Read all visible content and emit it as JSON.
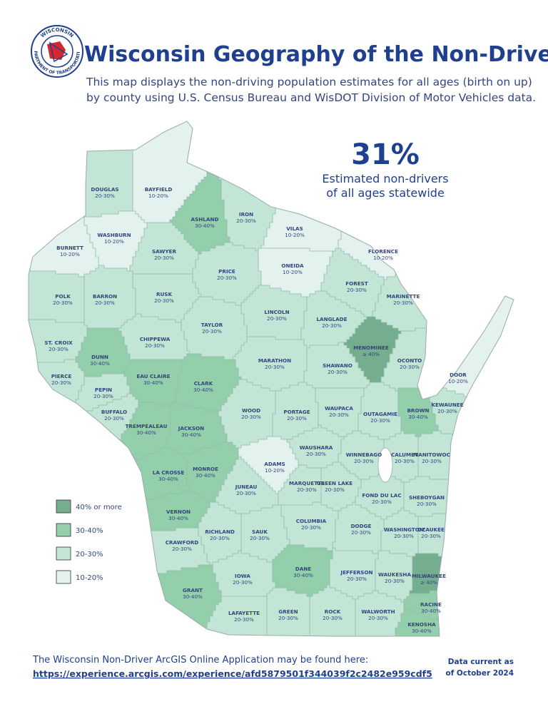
{
  "header": {
    "title": "Wisconsin Geography of the Non-Driver",
    "subtitle": [
      "This map displays the non-driving population estimates for all ages (birth on up)",
      "by county using U.S. Census Bureau and WisDOT Division of Motor Vehicles data."
    ],
    "logo": {
      "top": "WISCONSIN",
      "bottom": "DEPARTMENT OF TRANSPORTATION"
    }
  },
  "statewide": {
    "value": "31%",
    "caption": [
      "Estimated non-drivers",
      "of all ages statewide"
    ]
  },
  "legend": [
    {
      "label": "40% or more",
      "color": "#74ae8e"
    },
    {
      "label": "30-40%",
      "color": "#93cfab"
    },
    {
      "label": "20-30%",
      "color": "#c2e5d6"
    },
    {
      "label": "10-20%",
      "color": "#e3f2ef"
    }
  ],
  "counties": [
    {
      "name": "DOUGLAS",
      "range": "20-30%",
      "color": "#c2e5d6"
    },
    {
      "name": "BAYFIELD",
      "range": "10-20%",
      "color": "#e3f2ef"
    },
    {
      "name": "ASHLAND",
      "range": "30-40%",
      "color": "#93cfab"
    },
    {
      "name": "IRON",
      "range": "20-30%",
      "color": "#c2e5d6"
    },
    {
      "name": "VILAS",
      "range": "10-20%",
      "color": "#e3f2ef"
    },
    {
      "name": "BURNETT",
      "range": "10-20%",
      "color": "#e3f2ef"
    },
    {
      "name": "WASHBURN",
      "range": "10-20%",
      "color": "#e3f2ef"
    },
    {
      "name": "SAWYER",
      "range": "20-30%",
      "color": "#c2e5d6"
    },
    {
      "name": "PRICE",
      "range": "20-30%",
      "color": "#c2e5d6"
    },
    {
      "name": "ONEIDA",
      "range": "10-20%",
      "color": "#e3f2ef"
    },
    {
      "name": "FLORENCE",
      "range": "10-20%",
      "color": "#e3f2ef"
    },
    {
      "name": "FOREST",
      "range": "20-30%",
      "color": "#c2e5d6"
    },
    {
      "name": "MARINETTE",
      "range": "20-30%",
      "color": "#c2e5d6"
    },
    {
      "name": "POLK",
      "range": "20-30%",
      "color": "#c2e5d6"
    },
    {
      "name": "BARRON",
      "range": "20-30%",
      "color": "#c2e5d6"
    },
    {
      "name": "RUSK",
      "range": "20-30%",
      "color": "#c2e5d6"
    },
    {
      "name": "LINCOLN",
      "range": "20-30%",
      "color": "#c2e5d6"
    },
    {
      "name": "LANGLADE",
      "range": "20-30%",
      "color": "#c2e5d6"
    },
    {
      "name": "TAYLOR",
      "range": "20-30%",
      "color": "#c2e5d6"
    },
    {
      "name": "CHIPPEWA",
      "range": "20-30%",
      "color": "#c2e5d6"
    },
    {
      "name": "ST. CROIX",
      "range": "20-30%",
      "color": "#c2e5d6"
    },
    {
      "name": "DUNN",
      "range": "30-40%",
      "color": "#93cfab"
    },
    {
      "name": "MENOMINEE",
      "range": "≥ 40%",
      "color": "#74ae8e"
    },
    {
      "name": "MARATHON",
      "range": "20-30%",
      "color": "#c2e5d6"
    },
    {
      "name": "SHAWANO",
      "range": "20-30%",
      "color": "#c2e5d6"
    },
    {
      "name": "OCONTO",
      "range": "20-30%",
      "color": "#c2e5d6"
    },
    {
      "name": "PIERCE",
      "range": "20-30%",
      "color": "#c2e5d6"
    },
    {
      "name": "EAU CLAIRE",
      "range": "30-40%",
      "color": "#93cfab"
    },
    {
      "name": "CLARK",
      "range": "30-40%",
      "color": "#93cfab"
    },
    {
      "name": "DOOR",
      "range": "10-20%",
      "color": "#e3f2ef"
    },
    {
      "name": "PEPIN",
      "range": "20-30%",
      "color": "#c2e5d6"
    },
    {
      "name": "BUFFALO",
      "range": "20-30%",
      "color": "#c2e5d6"
    },
    {
      "name": "WOOD",
      "range": "20-30%",
      "color": "#c2e5d6"
    },
    {
      "name": "PORTAGE",
      "range": "20-30%",
      "color": "#c2e5d6"
    },
    {
      "name": "WAUPACA",
      "range": "20-30%",
      "color": "#c2e5d6"
    },
    {
      "name": "OUTAGAMIE",
      "range": "20-30%",
      "color": "#c2e5d6"
    },
    {
      "name": "BROWN",
      "range": "30-40%",
      "color": "#93cfab"
    },
    {
      "name": "KEWAUNEE",
      "range": "20-30%",
      "color": "#c2e5d6"
    },
    {
      "name": "TREMPEALEAU",
      "range": "30-40%",
      "color": "#93cfab"
    },
    {
      "name": "JACKSON",
      "range": "30-40%",
      "color": "#93cfab"
    },
    {
      "name": "MANITOWOC",
      "range": "20-30%",
      "color": "#c2e5d6"
    },
    {
      "name": "CALUMET",
      "range": "20-30%",
      "color": "#c2e5d6"
    },
    {
      "name": "WINNEBAGO",
      "range": "20-30%",
      "color": "#c2e5d6"
    },
    {
      "name": "WAUSHARA",
      "range": "20-30%",
      "color": "#c2e5d6"
    },
    {
      "name": "ADAMS",
      "range": "10-20%",
      "color": "#e3f2ef"
    },
    {
      "name": "MONROE",
      "range": "30-40%",
      "color": "#93cfab"
    },
    {
      "name": "LA CROSSE",
      "range": "30-40%",
      "color": "#93cfab"
    },
    {
      "name": "JUNEAU",
      "range": "20-30%",
      "color": "#c2e5d6"
    },
    {
      "name": "MARQUETTE",
      "range": "20-30%",
      "color": "#c2e5d6"
    },
    {
      "name": "GREEN LAKE",
      "range": "20-30%",
      "color": "#c2e5d6"
    },
    {
      "name": "FOND DU LAC",
      "range": "20-30%",
      "color": "#c2e5d6"
    },
    {
      "name": "SHEBOYGAN",
      "range": "20-30%",
      "color": "#c2e5d6"
    },
    {
      "name": "VERNON",
      "range": "30-40%",
      "color": "#93cfab"
    },
    {
      "name": "COLUMBIA",
      "range": "20-30%",
      "color": "#c2e5d6"
    },
    {
      "name": "DODGE",
      "range": "20-30%",
      "color": "#c2e5d6"
    },
    {
      "name": "WASHINGTON",
      "range": "20-30%",
      "color": "#c2e5d6"
    },
    {
      "name": "OZAUKEE",
      "range": "20-30%",
      "color": "#c2e5d6"
    },
    {
      "name": "RICHLAND",
      "range": "20-30%",
      "color": "#c2e5d6"
    },
    {
      "name": "SAUK",
      "range": "20-30%",
      "color": "#c2e5d6"
    },
    {
      "name": "CRAWFORD",
      "range": "20-30%",
      "color": "#c2e5d6"
    },
    {
      "name": "JEFFERSON",
      "range": "20-30%",
      "color": "#c2e5d6"
    },
    {
      "name": "WAUKESHA",
      "range": "20-30%",
      "color": "#c2e5d6"
    },
    {
      "name": "MILWAUKEE",
      "range": "≥ 40%",
      "color": "#74ae8e"
    },
    {
      "name": "IOWA",
      "range": "20-30%",
      "color": "#c2e5d6"
    },
    {
      "name": "DANE",
      "range": "30-40%",
      "color": "#93cfab"
    },
    {
      "name": "GRANT",
      "range": "30-40%",
      "color": "#93cfab"
    },
    {
      "name": "RACINE",
      "range": "30-40%",
      "color": "#93cfab"
    },
    {
      "name": "LAFAYETTE",
      "range": "20-30%",
      "color": "#c2e5d6"
    },
    {
      "name": "GREEN",
      "range": "20-30%",
      "color": "#c2e5d6"
    },
    {
      "name": "ROCK",
      "range": "20-30%",
      "color": "#c2e5d6"
    },
    {
      "name": "WALWORTH",
      "range": "20-30%",
      "color": "#c2e5d6"
    },
    {
      "name": "KENOSHA",
      "range": "30-40%",
      "color": "#93cfab"
    }
  ],
  "footer": {
    "note": "The Wisconsin Non-Driver ArcGIS Online Application may be found here:",
    "link": "https://experience.arcgis.com/experience/afd5879501f344039f2c2482e959cdf5",
    "date": [
      "Data current as",
      "of October 2024"
    ]
  }
}
